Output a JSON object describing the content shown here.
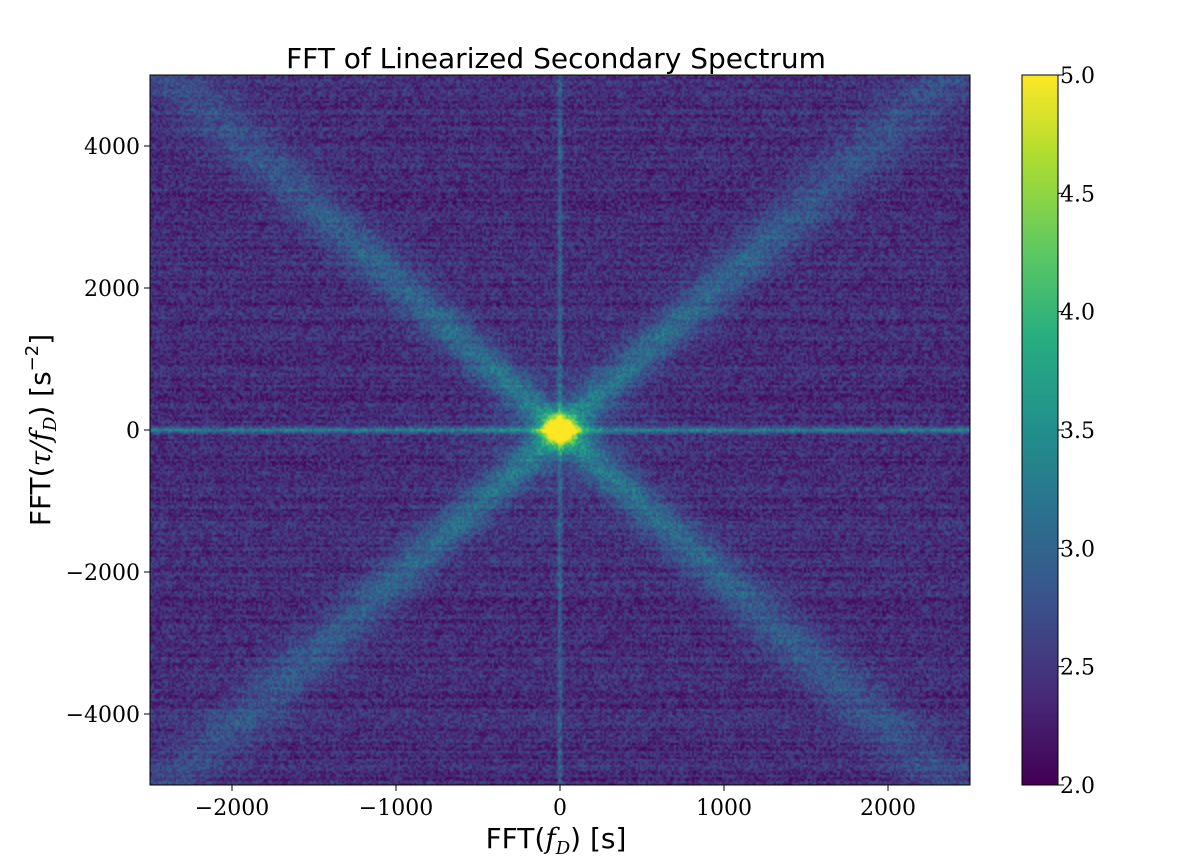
{
  "chart_data": {
    "type": "heatmap",
    "title": "FFT of Linearized Secondary Spectrum",
    "xlabel": "FFT(f_D) [s]",
    "ylabel": "FFT(τ/f_D) [s^-2]",
    "xlim": [
      -2500,
      2500
    ],
    "ylim": [
      -5000,
      5000
    ],
    "xticks": [
      -2000,
      -1000,
      0,
      1000,
      2000
    ],
    "xtick_labels": [
      "−2000",
      "−1000",
      "0",
      "1000",
      "2000"
    ],
    "yticks": [
      -4000,
      -2000,
      0,
      2000,
      4000
    ],
    "ytick_labels": [
      "−4000",
      "−2000",
      "0",
      "2000",
      "4000"
    ],
    "colorbar": {
      "colormap": "viridis",
      "range": [
        2.0,
        5.0
      ],
      "ticks": [
        2.0,
        2.5,
        3.0,
        3.5,
        4.0,
        4.5,
        5.0
      ],
      "tick_labels": [
        "2.0",
        "2.5",
        "3.0",
        "3.5",
        "4.0",
        "4.5",
        "5.0"
      ]
    },
    "features": {
      "background_level": 2.4,
      "peak": {
        "x": 0,
        "y": 0,
        "value": 5.0
      },
      "horizontal_line": {
        "y": 0,
        "value": 3.4
      },
      "vertical_line": {
        "x": 0,
        "value": 3.0
      },
      "diagonal_arms": [
        {
          "slope": 2.1,
          "value": 3.1
        },
        {
          "slope": -2.1,
          "value": 3.1
        }
      ]
    },
    "grid": false
  }
}
